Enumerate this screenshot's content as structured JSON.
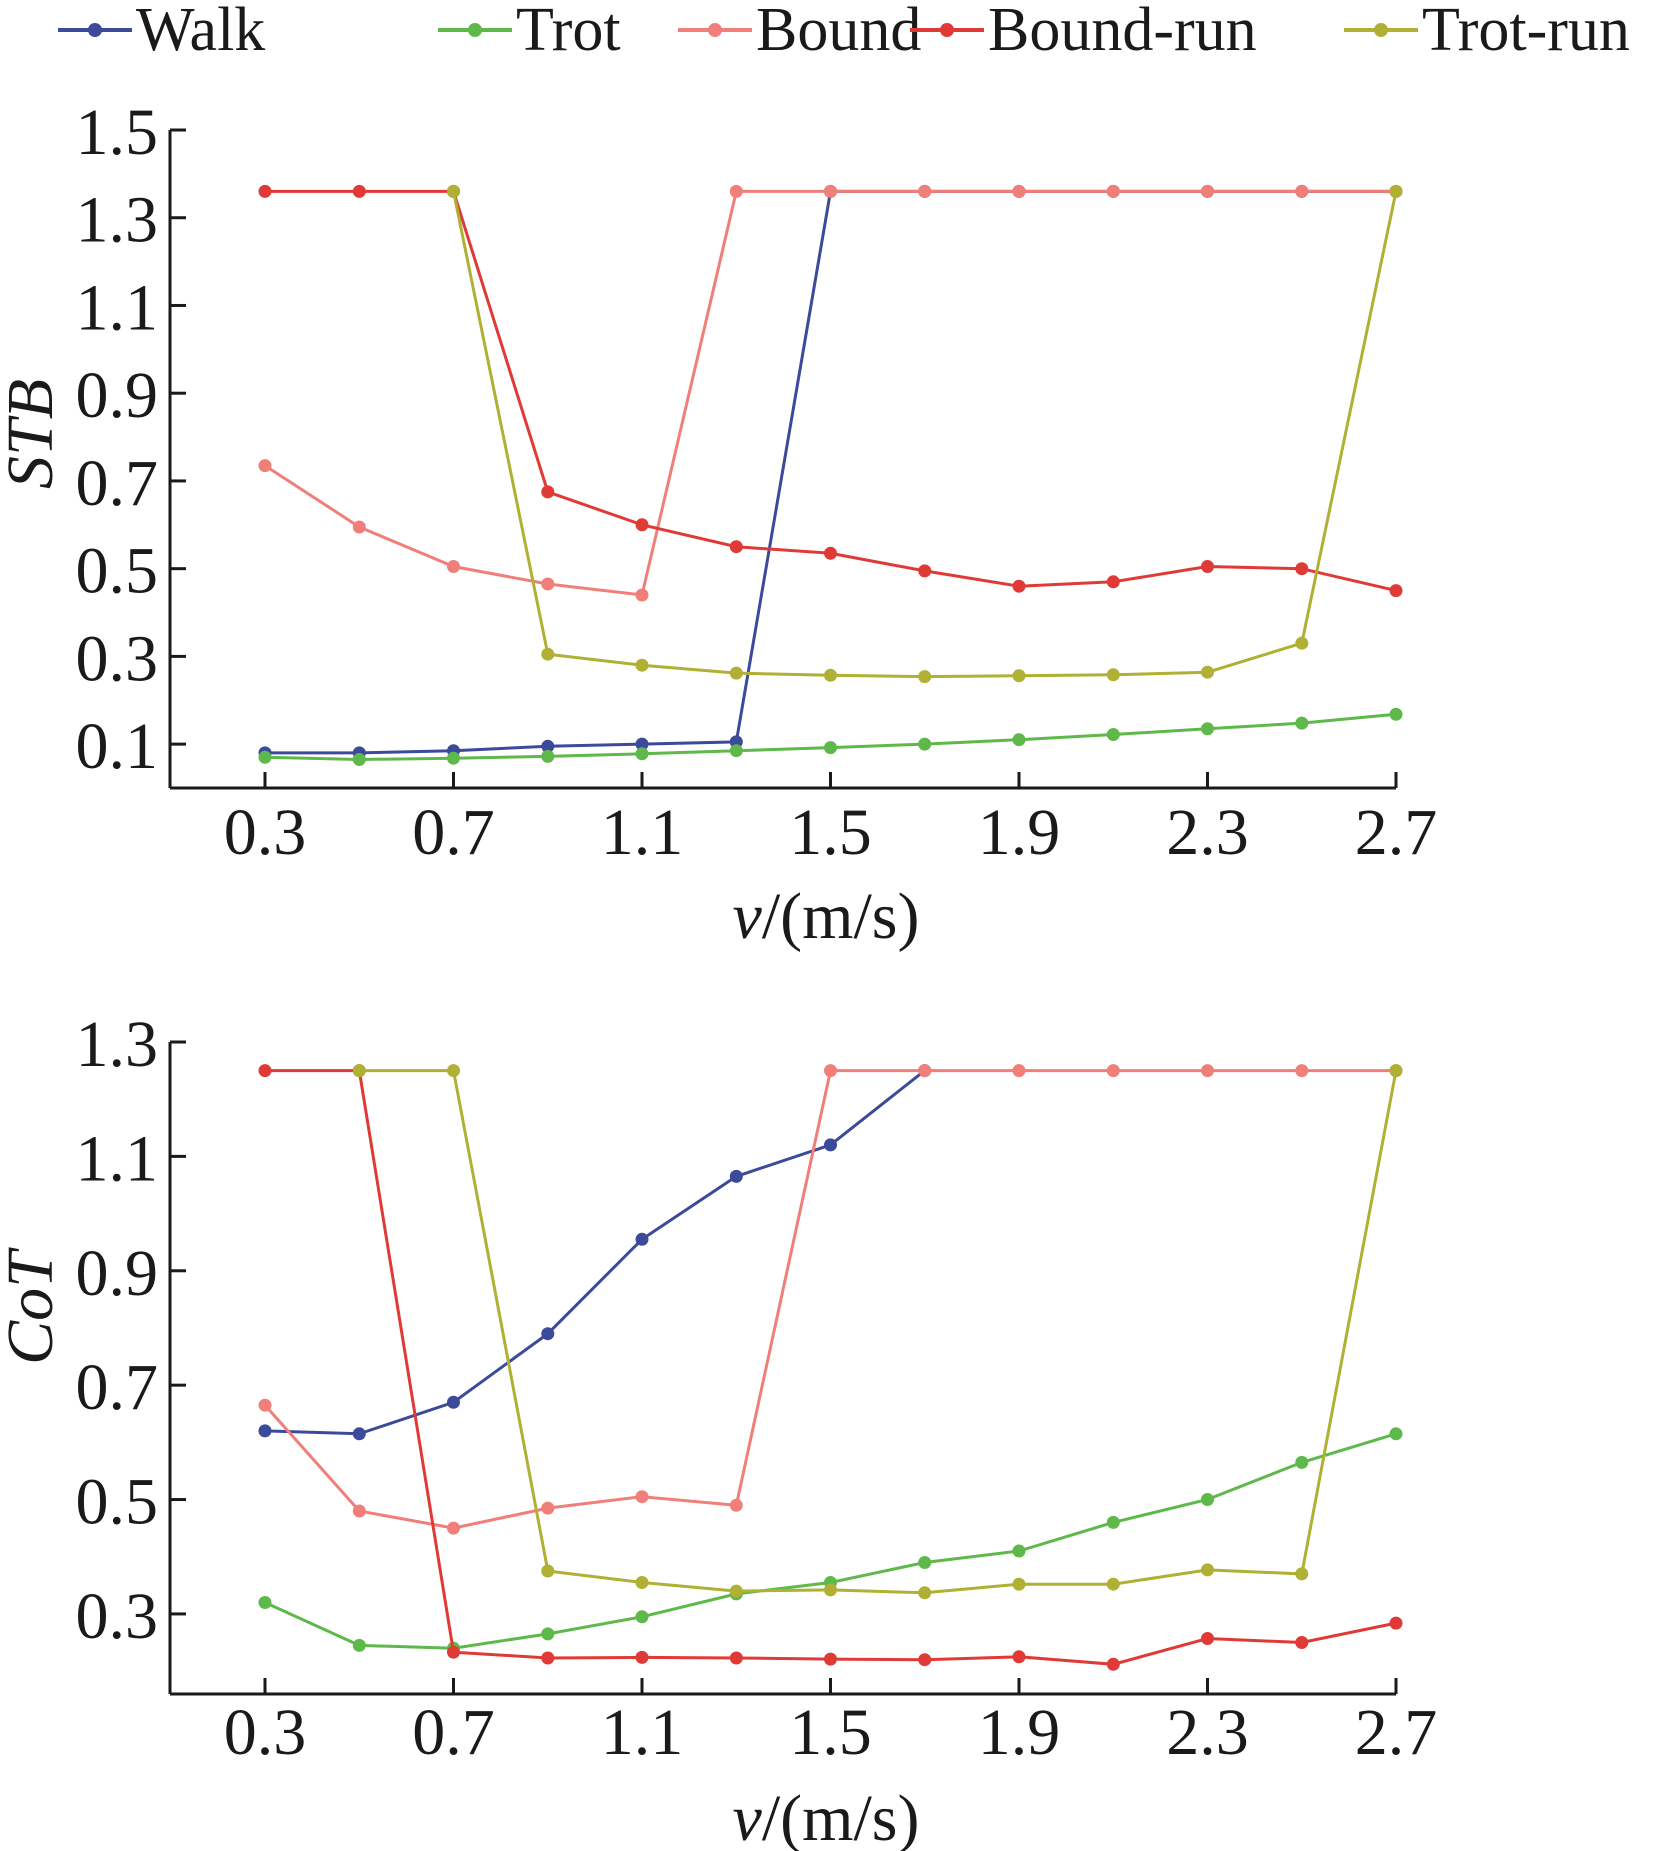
{
  "legend": [
    {
      "name": "Walk",
      "color": "#3b4a9a"
    },
    {
      "name": "Trot",
      "color": "#5fb84a"
    },
    {
      "name": "Bound",
      "color": "#f07f7a"
    },
    {
      "name": "Bound-run",
      "color": "#e03a36"
    },
    {
      "name": "Trot-run",
      "color": "#b0b034"
    }
  ],
  "chart_data": [
    {
      "type": "line",
      "ylabel_italic": "STB",
      "xlabel_italic": "v",
      "xlabel_rest": "/(m/s)",
      "x": [
        0.3,
        0.5,
        0.7,
        0.9,
        1.1,
        1.3,
        1.5,
        1.7,
        1.9,
        2.1,
        2.3,
        2.5,
        2.7
      ],
      "xlim": [
        0.3,
        2.7
      ],
      "ylim": [
        0.0,
        1.5
      ],
      "xticks": [
        "0.3",
        "0.7",
        "1.1",
        "1.5",
        "1.9",
        "2.3",
        "2.7"
      ],
      "yticks": [
        "0.1",
        "0.3",
        "0.5",
        "0.7",
        "0.9",
        "1.1",
        "1.3",
        "1.5"
      ],
      "series": [
        {
          "name": "Walk",
          "color": "#3b4a9a",
          "values": [
            0.08,
            0.08,
            0.085,
            0.095,
            0.1,
            0.105,
            1.36,
            1.36,
            1.36,
            1.36,
            1.36,
            1.36,
            1.36
          ]
        },
        {
          "name": "Trot",
          "color": "#5fb84a",
          "values": [
            0.07,
            0.065,
            0.068,
            0.072,
            0.078,
            0.085,
            0.092,
            0.1,
            0.11,
            0.122,
            0.135,
            0.148,
            0.168
          ]
        },
        {
          "name": "Bound",
          "color": "#f07f7a",
          "values": [
            0.735,
            0.595,
            0.505,
            0.465,
            0.44,
            1.36,
            1.36,
            1.36,
            1.36,
            1.36,
            1.36,
            1.36,
            1.36
          ]
        },
        {
          "name": "Bound-run",
          "color": "#e03a36",
          "values": [
            1.36,
            1.36,
            1.36,
            0.675,
            0.6,
            0.55,
            0.535,
            0.495,
            0.46,
            0.47,
            0.505,
            0.5,
            0.45
          ]
        },
        {
          "name": "Trot-run",
          "color": "#b0b034",
          "values": [
            null,
            null,
            1.36,
            0.305,
            0.28,
            0.262,
            0.257,
            0.254,
            0.256,
            0.258,
            0.264,
            0.33,
            1.36
          ]
        }
      ]
    },
    {
      "type": "line",
      "ylabel_italic": "CoT",
      "xlabel_italic": "v",
      "xlabel_rest": "/(m/s)",
      "x": [
        0.3,
        0.5,
        0.7,
        0.9,
        1.1,
        1.3,
        1.5,
        1.7,
        1.9,
        2.1,
        2.3,
        2.5,
        2.7
      ],
      "xlim": [
        0.3,
        2.7
      ],
      "ylim": [
        0.16,
        1.3
      ],
      "xticks": [
        "0.3",
        "0.7",
        "1.1",
        "1.5",
        "1.9",
        "2.3",
        "2.7"
      ],
      "yticks": [
        "0.3",
        "0.5",
        "0.7",
        "0.9",
        "1.1",
        "1.3"
      ],
      "series": [
        {
          "name": "Walk",
          "color": "#3b4a9a",
          "values": [
            0.62,
            0.615,
            0.67,
            0.79,
            0.955,
            1.065,
            1.12,
            1.25,
            null,
            null,
            null,
            null,
            null
          ]
        },
        {
          "name": "Trot",
          "color": "#5fb84a",
          "values": [
            0.32,
            0.245,
            0.24,
            0.265,
            0.295,
            0.335,
            0.355,
            0.39,
            0.41,
            0.46,
            0.5,
            0.565,
            0.615
          ]
        },
        {
          "name": "Bound",
          "color": "#f07f7a",
          "values": [
            0.665,
            0.48,
            0.45,
            0.485,
            0.505,
            0.49,
            1.25,
            1.25,
            1.25,
            1.25,
            1.25,
            1.25,
            1.25
          ]
        },
        {
          "name": "Bound-run",
          "color": "#e03a36",
          "values": [
            1.25,
            1.25,
            0.233,
            0.223,
            0.224,
            0.223,
            0.221,
            0.22,
            0.225,
            0.212,
            0.257,
            0.25,
            0.284
          ]
        },
        {
          "name": "Trot-run",
          "color": "#b0b034",
          "values": [
            null,
            1.25,
            1.25,
            0.375,
            0.355,
            0.34,
            0.342,
            0.337,
            0.352,
            0.352,
            0.377,
            0.37,
            1.25
          ]
        }
      ]
    }
  ]
}
